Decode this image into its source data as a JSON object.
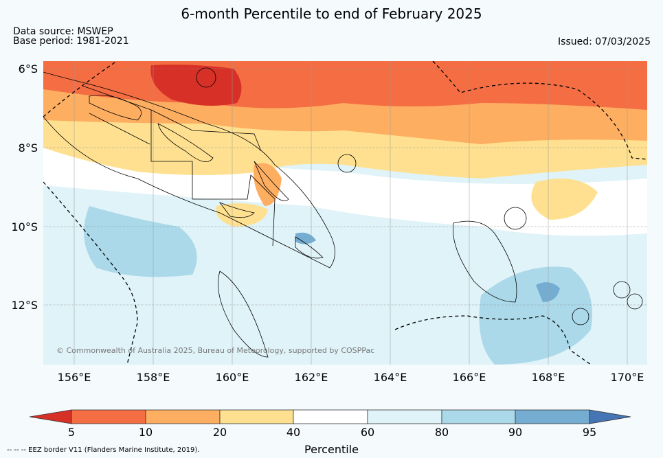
{
  "title": "6-month Percentile to end of February 2025",
  "source_line1": "Data source: MSWEP",
  "source_line2": "Base period: 1981-2021",
  "issued": "Issued: 07/03/2025",
  "copyright": "© Commonwealth of Australia 2025, Bureau of Meteorology, supported by COSPPac",
  "lat_ticks": [
    "6°S",
    "8°S",
    "10°S",
    "12°S"
  ],
  "lon_ticks": [
    "156°E",
    "158°E",
    "160°E",
    "162°E",
    "164°E",
    "166°E",
    "168°E",
    "170°E"
  ],
  "colorbar": {
    "label": "Percentile",
    "ticks": [
      "5",
      "10",
      "20",
      "40",
      "60",
      "80",
      "90",
      "95"
    ],
    "colors": [
      "#d73027",
      "#f46d43",
      "#fdae61",
      "#fee090",
      "#ffffff",
      "#e0f3f8",
      "#abd9e9",
      "#74add1",
      "#4575b4"
    ]
  },
  "footnote": "-- -- -- EEZ border V11 (Flanders Marine Institute, 2019)."
}
